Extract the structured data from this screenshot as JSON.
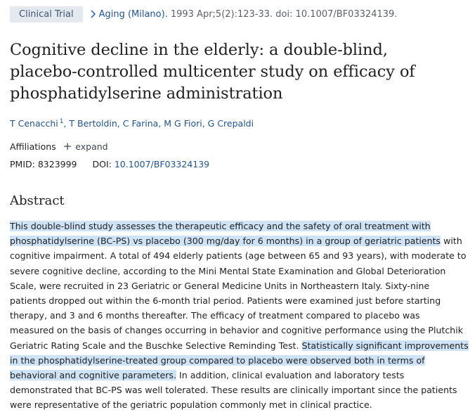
{
  "header": {
    "publication_type": "Clinical Trial",
    "journal": "Aging (Milano).",
    "citation": "1993 Apr;5(2):123-33. doi: 10.1007/BF03324139."
  },
  "article": {
    "title_lines": [
      "Cognitive decline in the elderly: a double-blind,",
      "placebo-controlled multicenter study on efficacy of",
      "phosphatidylserine administration"
    ],
    "authors": {
      "first": "T Cenacchi",
      "first_sup": "1",
      "rest": ", T Bertoldin, C Farina, M G Fiori, G Crepaldi"
    },
    "affiliations_label": "Affiliations",
    "expand_label": "expand",
    "pmid_label": "PMID:",
    "pmid_value": "8323999",
    "doi_label": "DOI:",
    "doi_value": "10.1007/BF03324139"
  },
  "abstract": {
    "heading": "Abstract",
    "lines": [
      {
        "pre": "",
        "hl": "This double-blind study assesses the therapeutic efficacy and the safety of oral treatment with",
        "post": ""
      },
      {
        "pre": "",
        "hl": "phosphatidylserine (BC-PS) vs placebo (300 mg/day for 6 months) in a group of geriatric patients",
        "post": " with"
      },
      {
        "pre": "cognitive impairment. A total of 494 elderly patients (age between 65 and 93 years), with moderate to",
        "hl": "",
        "post": ""
      },
      {
        "pre": "severe cognitive decline, according to the Mini Mental State Examination and Global Deterioration",
        "hl": "",
        "post": ""
      },
      {
        "pre": "Scale, were recruited in 23 Geriatric or General Medicine Units in Northeastern Italy. Sixty-nine",
        "hl": "",
        "post": ""
      },
      {
        "pre": "patients dropped out within the 6-month trial period. Patients were examined just before starting",
        "hl": "",
        "post": ""
      },
      {
        "pre": "therapy, and 3 and 6 months thereafter. The efficacy of treatment compared to placebo was",
        "hl": "",
        "post": ""
      },
      {
        "pre": "measured on the basis of changes occurring in behavior and cognitive performance using the Plutchik",
        "hl": "",
        "post": ""
      },
      {
        "pre": "Geriatric Rating Scale and the Buschke Selective Reminding Test. ",
        "hl": "Statistically significant improvements",
        "post": ""
      },
      {
        "pre": "",
        "hl": "in the phosphatidylserine-treated group compared to placebo were observed both in terms of",
        "post": ""
      },
      {
        "pre": "",
        "hl": "behavioral and cognitive parameters.",
        "post": " In addition, clinical evaluation and laboratory tests"
      },
      {
        "pre": "demonstrated that BC-PS was well tolerated. These results are clinically important since the patients",
        "hl": "",
        "post": ""
      },
      {
        "pre": "were representative of the geriatric population commonly met in clinical practice.",
        "hl": "",
        "post": ""
      }
    ]
  }
}
